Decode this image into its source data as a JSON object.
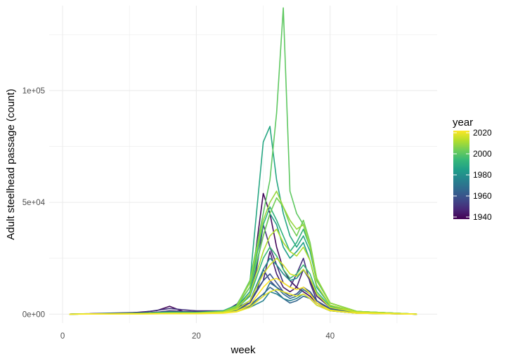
{
  "chart_data": {
    "type": "line",
    "title": "",
    "xlabel": "week",
    "ylabel": "Adult steelhead passage (count)",
    "xlim": [
      -2,
      56
    ],
    "ylim": [
      -4000,
      138000
    ],
    "x_ticks": [
      0,
      20,
      40
    ],
    "x_tick_labels": [
      "0",
      "20",
      "40"
    ],
    "y_ticks": [
      0,
      50000,
      100000
    ],
    "y_tick_labels": [
      "0e+00",
      "5e+04",
      "1e+05"
    ],
    "grid": true,
    "legend": {
      "title": "year",
      "position": "right",
      "type": "colorbar",
      "palette": "viridis",
      "range": [
        1938,
        2022
      ],
      "ticks": [
        1940,
        1960,
        1980,
        2000,
        2020
      ],
      "tick_labels": [
        "1940",
        "1960",
        "1980",
        "2000",
        "2020"
      ]
    },
    "colors": {
      "viridis": [
        "#440154",
        "#482878",
        "#3e4a89",
        "#31688e",
        "#26828e",
        "#1f9e89",
        "#35b779",
        "#6dcd59",
        "#b4de2c",
        "#fde725"
      ],
      "grid": "#ebebeb",
      "background": "#ffffff"
    },
    "series": [
      {
        "year": 1940,
        "x": [
          1,
          10,
          14,
          16,
          18,
          24,
          28,
          30,
          31,
          32,
          33,
          34,
          35,
          36,
          37,
          38,
          40,
          44,
          50,
          53
        ],
        "y": [
          0,
          500,
          1500,
          3500,
          1200,
          800,
          8000,
          54000,
          45000,
          30000,
          20000,
          15000,
          12000,
          10000,
          8000,
          5000,
          2000,
          500,
          300,
          0
        ]
      },
      {
        "year": 1945,
        "x": [
          1,
          10,
          14,
          16,
          20,
          24,
          28,
          30,
          31,
          32,
          33,
          34,
          35,
          36,
          37,
          38,
          40,
          44,
          50,
          53
        ],
        "y": [
          0,
          300,
          800,
          1500,
          1000,
          1500,
          5000,
          15000,
          28000,
          18000,
          12000,
          10000,
          12000,
          20000,
          15000,
          8000,
          3000,
          800,
          200,
          0
        ]
      },
      {
        "year": 1950,
        "x": [
          1,
          12,
          16,
          20,
          24,
          26,
          28,
          29,
          30,
          31,
          32,
          33,
          34,
          35,
          36,
          37,
          38,
          40,
          44,
          53
        ],
        "y": [
          0,
          800,
          2500,
          1500,
          1500,
          3000,
          8000,
          20000,
          40000,
          30000,
          22000,
          14000,
          12000,
          18000,
          25000,
          14000,
          6000,
          2000,
          500,
          0
        ]
      },
      {
        "year": 1955,
        "x": [
          1,
          12,
          16,
          20,
          24,
          26,
          28,
          29,
          30,
          31,
          32,
          33,
          34,
          35,
          36,
          37,
          38,
          40,
          44,
          53
        ],
        "y": [
          0,
          500,
          1000,
          800,
          1000,
          2000,
          5000,
          10000,
          20000,
          15000,
          12000,
          10000,
          8000,
          9000,
          12000,
          10000,
          5000,
          1500,
          400,
          0
        ]
      },
      {
        "year": 1960,
        "x": [
          1,
          12,
          16,
          20,
          24,
          26,
          28,
          30,
          31,
          32,
          33,
          34,
          35,
          36,
          37,
          38,
          40,
          44,
          53
        ],
        "y": [
          0,
          400,
          1200,
          900,
          1000,
          2500,
          6000,
          15000,
          18000,
          14000,
          10000,
          8000,
          9000,
          12000,
          10000,
          6000,
          2500,
          600,
          0
        ]
      },
      {
        "year": 1965,
        "x": [
          1,
          12,
          16,
          20,
          24,
          26,
          28,
          30,
          31,
          32,
          33,
          34,
          35,
          36,
          37,
          38,
          40,
          44,
          53
        ],
        "y": [
          0,
          300,
          900,
          700,
          800,
          2000,
          4000,
          9000,
          12000,
          10000,
          7000,
          5000,
          6000,
          8000,
          7000,
          4000,
          1500,
          400,
          0
        ]
      },
      {
        "year": 1970,
        "x": [
          1,
          12,
          16,
          20,
          24,
          26,
          28,
          30,
          31,
          32,
          33,
          34,
          35,
          36,
          37,
          38,
          40,
          44,
          53
        ],
        "y": [
          0,
          200,
          600,
          500,
          700,
          1500,
          3500,
          8000,
          14000,
          12000,
          9000,
          7000,
          8000,
          11000,
          9000,
          5000,
          2000,
          500,
          0
        ]
      },
      {
        "year": 1975,
        "x": [
          1,
          12,
          16,
          20,
          24,
          26,
          28,
          30,
          31,
          32,
          33,
          34,
          35,
          36,
          37,
          38,
          40,
          44,
          53
        ],
        "y": [
          0,
          200,
          500,
          400,
          600,
          1200,
          3000,
          6000,
          10000,
          9000,
          7000,
          6000,
          7000,
          9000,
          7000,
          4000,
          1500,
          400,
          0
        ]
      },
      {
        "year": 1980,
        "x": [
          1,
          12,
          16,
          20,
          24,
          26,
          28,
          30,
          31,
          32,
          33,
          34,
          35,
          36,
          37,
          38,
          40,
          44,
          53
        ],
        "y": [
          0,
          300,
          700,
          600,
          900,
          2000,
          6000,
          20000,
          25000,
          22000,
          18000,
          15000,
          16000,
          20000,
          16000,
          9000,
          3000,
          800,
          0
        ]
      },
      {
        "year": 1985,
        "x": [
          1,
          12,
          16,
          20,
          24,
          26,
          28,
          30,
          31,
          32,
          33,
          34,
          35,
          36,
          37,
          38,
          40,
          44,
          53
        ],
        "y": [
          0,
          400,
          800,
          700,
          1200,
          3000,
          10000,
          35000,
          45000,
          40000,
          30000,
          25000,
          28000,
          32000,
          24000,
          12000,
          4000,
          1000,
          0
        ]
      },
      {
        "year": 1988,
        "x": [
          1,
          12,
          16,
          20,
          24,
          26,
          28,
          30,
          31,
          32,
          33,
          34,
          35,
          36,
          37,
          38,
          40,
          44,
          53
        ],
        "y": [
          0,
          500,
          900,
          800,
          1500,
          4000,
          14000,
          77000,
          84000,
          60000,
          45000,
          35000,
          30000,
          35000,
          28000,
          15000,
          5000,
          1200,
          0
        ]
      },
      {
        "year": 1992,
        "x": [
          1,
          12,
          16,
          20,
          24,
          26,
          28,
          30,
          31,
          32,
          33,
          34,
          35,
          36,
          37,
          38,
          40,
          44,
          53
        ],
        "y": [
          0,
          400,
          700,
          600,
          1200,
          3500,
          12000,
          40000,
          48000,
          42000,
          35000,
          28000,
          32000,
          38000,
          30000,
          16000,
          5000,
          1200,
          0
        ]
      },
      {
        "year": 1995,
        "x": [
          1,
          12,
          16,
          20,
          24,
          26,
          28,
          30,
          31,
          32,
          33,
          34,
          35,
          36,
          37,
          38,
          40,
          44,
          53
        ],
        "y": [
          0,
          300,
          500,
          500,
          900,
          2500,
          8000,
          25000,
          30000,
          26000,
          20000,
          16000,
          18000,
          22000,
          18000,
          10000,
          3500,
          900,
          0
        ]
      },
      {
        "year": 2001,
        "x": [
          1,
          12,
          16,
          20,
          24,
          26,
          28,
          30,
          31,
          32,
          33,
          34,
          35,
          36,
          37,
          38,
          40,
          44,
          53
        ],
        "y": [
          0,
          300,
          600,
          600,
          1200,
          3500,
          15000,
          45000,
          60000,
          90000,
          137000,
          55000,
          45000,
          40000,
          30000,
          15000,
          5000,
          1200,
          0
        ]
      },
      {
        "year": 2004,
        "x": [
          1,
          12,
          16,
          20,
          24,
          26,
          28,
          30,
          31,
          32,
          33,
          34,
          35,
          36,
          37,
          38,
          40,
          44,
          53
        ],
        "y": [
          0,
          300,
          500,
          500,
          1000,
          3000,
          12000,
          35000,
          45000,
          52000,
          48000,
          40000,
          35000,
          42000,
          32000,
          16000,
          5000,
          1200,
          0
        ]
      },
      {
        "year": 2009,
        "x": [
          1,
          12,
          16,
          20,
          24,
          26,
          28,
          30,
          31,
          32,
          33,
          34,
          35,
          36,
          37,
          38,
          40,
          44,
          53
        ],
        "y": [
          0,
          300,
          500,
          600,
          1100,
          3500,
          14000,
          42000,
          50000,
          55000,
          48000,
          42000,
          38000,
          40000,
          30000,
          16000,
          5000,
          1200,
          0
        ]
      },
      {
        "year": 2012,
        "x": [
          1,
          12,
          16,
          20,
          24,
          26,
          28,
          30,
          31,
          32,
          33,
          34,
          35,
          36,
          37,
          38,
          40,
          44,
          53
        ],
        "y": [
          0,
          200,
          400,
          400,
          900,
          2500,
          9000,
          28000,
          35000,
          38000,
          32000,
          28000,
          26000,
          30000,
          24000,
          13000,
          4000,
          1000,
          0
        ]
      },
      {
        "year": 2016,
        "x": [
          1,
          12,
          16,
          20,
          24,
          26,
          28,
          30,
          31,
          32,
          33,
          34,
          35,
          36,
          37,
          38,
          40,
          44,
          53
        ],
        "y": [
          0,
          200,
          300,
          300,
          700,
          2000,
          6000,
          18000,
          22000,
          25000,
          22000,
          18000,
          17000,
          20000,
          16000,
          9000,
          3000,
          800,
          0
        ]
      },
      {
        "year": 2019,
        "x": [
          1,
          12,
          16,
          20,
          24,
          26,
          28,
          30,
          31,
          32,
          33,
          34,
          35,
          36,
          37,
          38,
          40,
          44,
          53
        ],
        "y": [
          0,
          100,
          200,
          200,
          400,
          1000,
          3000,
          8000,
          10000,
          11000,
          10000,
          9000,
          8000,
          9000,
          7000,
          4000,
          1500,
          400,
          0
        ]
      },
      {
        "year": 2022,
        "x": [
          1,
          12,
          16,
          20,
          24,
          26,
          28,
          30,
          31,
          32,
          33,
          34,
          35,
          36,
          37,
          38,
          40,
          44,
          53
        ],
        "y": [
          0,
          100,
          200,
          200,
          500,
          1200,
          4000,
          12000,
          15000,
          16000,
          14000,
          12000,
          11000,
          12000,
          9000,
          5000,
          1800,
          400,
          0
        ]
      }
    ]
  }
}
